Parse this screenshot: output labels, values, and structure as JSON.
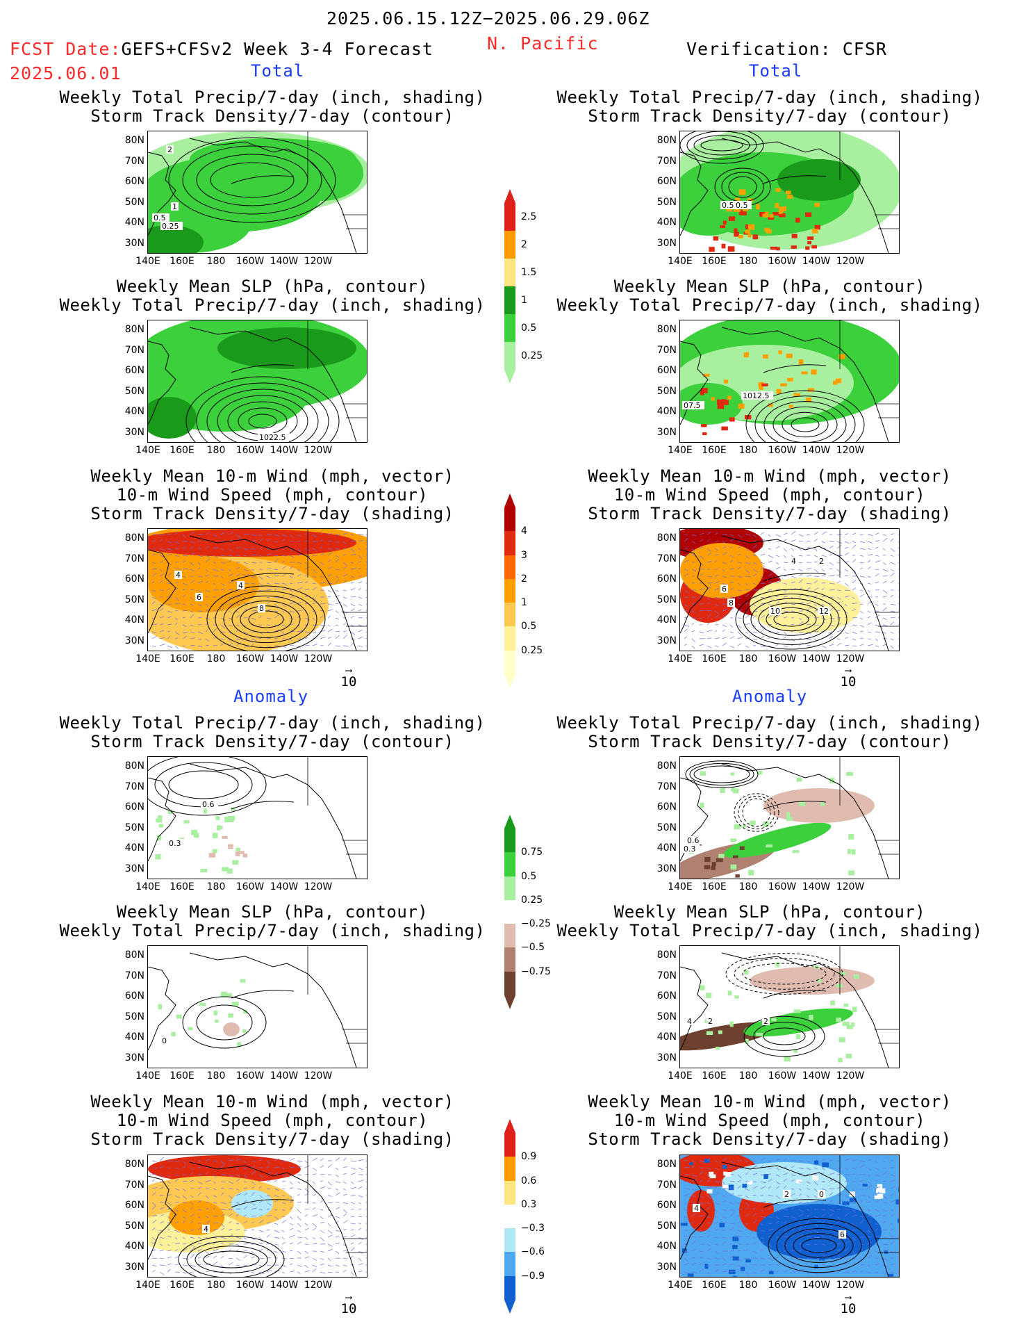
{
  "header": {
    "period": "2025.06.15.12Z−2025.06.29.06Z",
    "fcst_date_label": "FCST Date:",
    "model": "GEFS+CFSv2 Week 3-4 Forecast",
    "fcst_date": "2025.06.01",
    "region": "N. Pacific",
    "verification": "Verification: CFSR"
  },
  "sections": {
    "total": "Total",
    "anomaly": "Anomaly"
  },
  "titles": {
    "precip_track": [
      "Weekly Total Precip/7-day (inch, shading)",
      "Storm Track Density/7-day (contour)"
    ],
    "slp_precip": [
      "Weekly Mean SLP (hPa, contour)",
      "Weekly Total Precip/7-day (inch, shading)"
    ],
    "wind_track": [
      "Weekly Mean 10-m Wind (mph, vector)",
      "10-m Wind Speed (mph, contour)",
      "Storm Track Density/7-day (shading)"
    ]
  },
  "axes": {
    "lat_labels": [
      "80N",
      "70N",
      "60N",
      "50N",
      "40N",
      "30N"
    ],
    "lon_labels": [
      "140E",
      "160E",
      "180",
      "160W",
      "140W",
      "120W"
    ]
  },
  "ref_vector": "10",
  "colorbars": {
    "precip_total": {
      "labels": [
        "2.5",
        "2",
        "1.5",
        "1",
        "0.5",
        "0.25"
      ],
      "colors": [
        "#e0201b",
        "#ff9a00",
        "#ffe680",
        "#1a9a1a",
        "#3cd03c",
        "#a8f0a0"
      ]
    },
    "track_total": {
      "labels": [
        "4",
        "3",
        "2",
        "1",
        "0.5",
        "0.25"
      ],
      "colors": [
        "#b00000",
        "#e02a10",
        "#ff6a00",
        "#ffa000",
        "#ffc850",
        "#fff09a",
        "#ffffc8"
      ]
    },
    "precip_anom": {
      "labels": [
        "0.75",
        "0.5",
        "0.25",
        "−0.25",
        "−0.5",
        "−0.75"
      ],
      "colors": [
        "#1a9a1a",
        "#3cd03c",
        "#a8f0a0",
        "#ffffff",
        "#e0bcb0",
        "#b08070",
        "#6e4030"
      ]
    },
    "track_anom": {
      "labels": [
        "0.9",
        "0.6",
        "0.3",
        "−0.3",
        "−0.6",
        "−0.9"
      ],
      "colors": [
        "#e0201b",
        "#ff9a00",
        "#ffe680",
        "#ffffff",
        "#b0e8f8",
        "#50a8f0",
        "#1060d0"
      ]
    }
  },
  "panel_labels": {
    "p1": [
      "2",
      "1",
      "0.5",
      "0.25"
    ],
    "p2": [
      "0.5",
      "0.5"
    ],
    "p3": [
      "1022.5"
    ],
    "p4": [
      "07.5",
      "1012.5"
    ],
    "p5": [
      "4",
      "4",
      "6",
      "8"
    ],
    "p6": [
      "2",
      "4",
      "6",
      "8",
      "10",
      "12"
    ],
    "p7": [
      "0.6",
      "0.3"
    ],
    "p8": [
      "0.3",
      "0.6"
    ],
    "p9": [
      "0"
    ],
    "p10": [
      "4",
      "2",
      "2"
    ],
    "p11": [
      "4"
    ],
    "p12": [
      "4",
      "2",
      "0",
      "6"
    ]
  }
}
